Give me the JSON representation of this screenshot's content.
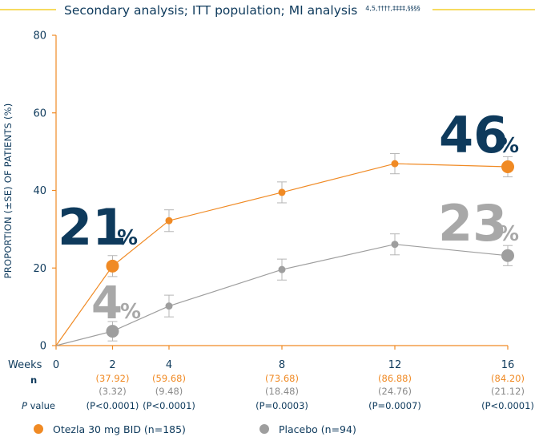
{
  "header": {
    "title": "Secondary analysis; ITT population; MI analysis",
    "superscript": "4,5,††††,‡‡‡‡,§§§§",
    "line_color": "#f2c500"
  },
  "chart_data": {
    "type": "line",
    "title": "Secondary analysis; ITT population; MI analysis",
    "ylabel": "PROPORTION (±SE) OF PATIENTS (%)",
    "xlabel": "Weeks",
    "ylim": [
      0,
      80
    ],
    "yticks": [
      0,
      20,
      40,
      60,
      80
    ],
    "x": [
      0,
      2,
      4,
      8,
      12,
      16
    ],
    "grid": false,
    "series": [
      {
        "name": "Otezla 30 mg BID (n=185)",
        "color": "#f08a24",
        "values": [
          0,
          20.5,
          32.2,
          39.5,
          46.9,
          46.1
        ],
        "errors": [
          0,
          2.7,
          2.8,
          2.7,
          2.6,
          2.6
        ]
      },
      {
        "name": "Placebo (n=94)",
        "color": "#9e9e9e",
        "values": [
          0,
          3.7,
          10.2,
          19.6,
          26.1,
          23.2
        ],
        "errors": [
          0,
          2.5,
          2.8,
          2.7,
          2.7,
          2.6
        ]
      }
    ],
    "highlights": [
      {
        "series": 0,
        "x": 2,
        "value": "21",
        "unit": "%",
        "color": "#0e3a5c"
      },
      {
        "series": 0,
        "x": 16,
        "value": "46",
        "unit": "%",
        "color": "#0e3a5c"
      },
      {
        "series": 1,
        "x": 2,
        "value": "4",
        "unit": "%",
        "color": "#a8a8a8"
      },
      {
        "series": 1,
        "x": 16,
        "value": "23",
        "unit": "%",
        "color": "#a8a8a8"
      }
    ]
  },
  "table": {
    "weeks_label": "Weeks",
    "n_label": "n",
    "pvalue_label_italic": "P",
    "pvalue_label_rest": " value",
    "columns": [
      {
        "week": "0",
        "otezla_n": "",
        "placebo_n": "",
        "p": ""
      },
      {
        "week": "2",
        "otezla_n": "(37.92)",
        "placebo_n": "(3.32)",
        "p": "(P<0.0001)"
      },
      {
        "week": "4",
        "otezla_n": "(59.68)",
        "placebo_n": "(9.48)",
        "p": "(P<0.0001)"
      },
      {
        "week": "8",
        "otezla_n": "(73.68)",
        "placebo_n": "(18.48)",
        "p": "(P=0.0003)"
      },
      {
        "week": "12",
        "otezla_n": "(86.88)",
        "placebo_n": "(24.76)",
        "p": "(P=0.0007)"
      },
      {
        "week": "16",
        "otezla_n": "(84.20)",
        "placebo_n": "(21.12)",
        "p": "(P<0.0001)"
      }
    ]
  },
  "legend": [
    {
      "label": "Otezla 30 mg BID (n=185)",
      "color": "#f08a24"
    },
    {
      "label": "Placebo (n=94)",
      "color": "#9e9e9e"
    }
  ],
  "colors": {
    "axis": "#f08a24",
    "label_blue": "#0e3a5c",
    "placebo_text": "#8a8a8a",
    "otezla_text": "#f08a24"
  }
}
